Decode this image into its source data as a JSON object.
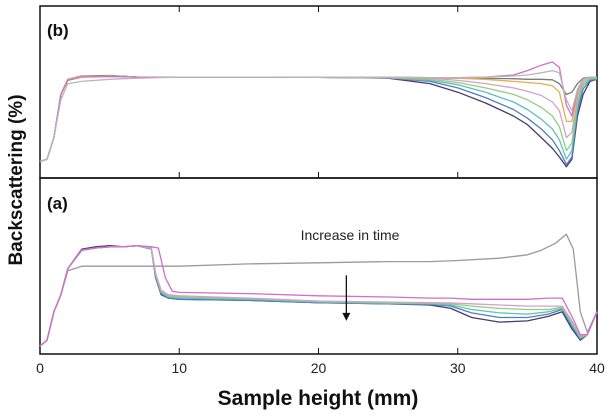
{
  "chart_data": {
    "type": "line",
    "xlabel": "Sample height (mm)",
    "ylabel": "Backscattering (%)",
    "xlim": [
      0,
      40
    ],
    "x_ticks": [
      "0",
      "10",
      "20",
      "30",
      "40"
    ],
    "grid": false,
    "panels": [
      {
        "label": "(b)",
        "position": "top",
        "series": [
          {
            "color": "#7a7a7a",
            "x": [
              0,
              0.5,
              1,
              1.5,
              2,
              3,
              5,
              7,
              10,
              15,
              20,
              25,
              28,
              30,
              32,
              34,
              35,
              36,
              36.8,
              37.3,
              37.8,
              38.2,
              38.6,
              39,
              39.5,
              40
            ],
            "y": [
              0.08,
              0.1,
              0.3,
              0.7,
              0.83,
              0.865,
              0.87,
              0.86,
              0.86,
              0.86,
              0.858,
              0.857,
              0.855,
              0.85,
              0.848,
              0.845,
              0.84,
              0.84,
              0.835,
              0.8,
              0.7,
              0.72,
              0.8,
              0.85,
              0.86,
              0.86
            ]
          },
          {
            "color": "#4a3a6a",
            "x": [
              0,
              0.5,
              1,
              1.5,
              2,
              3,
              5,
              7,
              10,
              15,
              20,
              25,
              28,
              30,
              32,
              34,
              35,
              36,
              36.8,
              37.3,
              37.8,
              38.2,
              38.6,
              39,
              39.5,
              40
            ],
            "y": [
              0.08,
              0.1,
              0.3,
              0.7,
              0.84,
              0.87,
              0.875,
              0.86,
              0.86,
              0.86,
              0.858,
              0.85,
              0.8,
              0.72,
              0.62,
              0.5,
              0.42,
              0.3,
              0.2,
              0.12,
              0.03,
              0.1,
              0.5,
              0.7,
              0.82,
              0.84
            ]
          },
          {
            "color": "#4f7fbf",
            "x": [
              0,
              0.5,
              1,
              1.5,
              2,
              3,
              5,
              7,
              10,
              15,
              20,
              25,
              28,
              30,
              32,
              34,
              35,
              36,
              36.8,
              37.3,
              37.8,
              38.2,
              38.6,
              39,
              39.5,
              40
            ],
            "y": [
              0.08,
              0.1,
              0.3,
              0.7,
              0.84,
              0.868,
              0.872,
              0.86,
              0.86,
              0.86,
              0.858,
              0.852,
              0.82,
              0.76,
              0.67,
              0.56,
              0.48,
              0.38,
              0.28,
              0.18,
              0.05,
              0.12,
              0.55,
              0.75,
              0.83,
              0.84
            ]
          },
          {
            "color": "#5fbfbf",
            "x": [
              0,
              0.5,
              1,
              1.5,
              2,
              3,
              5,
              7,
              10,
              15,
              20,
              25,
              28,
              30,
              32,
              34,
              35,
              36,
              36.8,
              37.3,
              37.8,
              38.2,
              38.6,
              39,
              39.5,
              40
            ],
            "y": [
              0.08,
              0.1,
              0.3,
              0.7,
              0.84,
              0.866,
              0.87,
              0.86,
              0.86,
              0.86,
              0.858,
              0.854,
              0.83,
              0.79,
              0.72,
              0.63,
              0.56,
              0.47,
              0.38,
              0.28,
              0.1,
              0.18,
              0.6,
              0.78,
              0.84,
              0.85
            ]
          },
          {
            "color": "#8fcf7f",
            "x": [
              0,
              0.5,
              1,
              1.5,
              2,
              3,
              5,
              7,
              10,
              15,
              20,
              25,
              28,
              30,
              32,
              34,
              35,
              36,
              36.8,
              37.3,
              37.8,
              38.2,
              38.6,
              39,
              39.5,
              40
            ],
            "y": [
              0.08,
              0.1,
              0.3,
              0.7,
              0.84,
              0.866,
              0.87,
              0.86,
              0.86,
              0.86,
              0.858,
              0.855,
              0.84,
              0.81,
              0.76,
              0.7,
              0.65,
              0.58,
              0.5,
              0.4,
              0.18,
              0.25,
              0.64,
              0.8,
              0.85,
              0.85
            ]
          },
          {
            "color": "#d4a0c8",
            "x": [
              0,
              0.5,
              1,
              1.5,
              2,
              3,
              5,
              7,
              10,
              15,
              20,
              25,
              28,
              30,
              32,
              34,
              35,
              36,
              36.8,
              37.3,
              37.8,
              38.2,
              38.6,
              39,
              39.5,
              40
            ],
            "y": [
              0.08,
              0.1,
              0.3,
              0.7,
              0.84,
              0.866,
              0.87,
              0.86,
              0.86,
              0.86,
              0.858,
              0.856,
              0.85,
              0.83,
              0.8,
              0.76,
              0.73,
              0.69,
              0.63,
              0.55,
              0.3,
              0.35,
              0.68,
              0.82,
              0.86,
              0.86
            ]
          },
          {
            "color": "#e0b050",
            "x": [
              0,
              0.5,
              1,
              1.5,
              2,
              3,
              5,
              7,
              10,
              15,
              20,
              25,
              28,
              30,
              32,
              34,
              35,
              36,
              36.8,
              37.3,
              37.8,
              38.2,
              38.6,
              39,
              39.5,
              40
            ],
            "y": [
              0.08,
              0.1,
              0.3,
              0.7,
              0.84,
              0.866,
              0.87,
              0.86,
              0.86,
              0.86,
              0.858,
              0.857,
              0.855,
              0.85,
              0.84,
              0.82,
              0.81,
              0.8,
              0.78,
              0.72,
              0.45,
              0.45,
              0.72,
              0.84,
              0.86,
              0.86
            ]
          },
          {
            "color": "#d070c8",
            "x": [
              0,
              0.5,
              1,
              1.5,
              2,
              3,
              5,
              7,
              10,
              15,
              20,
              25,
              28,
              30,
              32,
              34,
              35,
              36,
              36.8,
              37.3,
              37.8,
              38.2,
              38.6,
              39,
              39.5,
              40
            ],
            "y": [
              0.08,
              0.1,
              0.3,
              0.7,
              0.83,
              0.86,
              0.865,
              0.86,
              0.86,
              0.86,
              0.858,
              0.857,
              0.856,
              0.855,
              0.86,
              0.88,
              0.92,
              0.97,
              1.0,
              0.95,
              0.6,
              0.5,
              0.74,
              0.84,
              0.86,
              0.86
            ]
          },
          {
            "color": "#b8b8b8",
            "x": [
              0,
              0.5,
              1,
              1.5,
              2,
              3,
              5,
              7,
              10,
              15,
              20,
              25,
              28,
              30,
              32,
              34,
              35,
              36,
              36.8,
              37.3,
              37.8,
              38.2,
              38.6,
              39,
              39.5,
              40
            ],
            "y": [
              0.08,
              0.1,
              0.3,
              0.65,
              0.8,
              0.82,
              0.84,
              0.85,
              0.86,
              0.86,
              0.858,
              0.857,
              0.856,
              0.855,
              0.86,
              0.87,
              0.88,
              0.9,
              0.92,
              0.9,
              0.65,
              0.55,
              0.75,
              0.84,
              0.86,
              0.86
            ]
          }
        ]
      },
      {
        "label": "(a)",
        "position": "bottom",
        "annotation": {
          "text": "Increase in time",
          "x": 22,
          "y_from": 0.62,
          "y_to": 0.22
        },
        "series": [
          {
            "color": "#9a9a9a",
            "x": [
              0,
              0.5,
              1,
              1.5,
              2,
              3,
              5,
              7,
              10,
              15,
              20,
              25,
              28,
              30,
              33,
              35,
              36,
              37,
              37.8,
              38.3,
              38.8,
              39.3,
              40
            ],
            "y": [
              0.0,
              0.05,
              0.3,
              0.45,
              0.66,
              0.7,
              0.7,
              0.7,
              0.7,
              0.72,
              0.73,
              0.74,
              0.74,
              0.75,
              0.77,
              0.8,
              0.84,
              0.9,
              0.98,
              0.85,
              0.3,
              0.12,
              0.3
            ]
          },
          {
            "color": "#4a3a6a",
            "x": [
              0,
              0.5,
              1,
              1.5,
              2,
              3,
              4,
              5,
              6,
              7,
              8,
              8.3,
              8.7,
              9.2,
              10,
              15,
              20,
              25,
              28,
              29.5,
              31,
              33,
              35,
              36.5,
              37.5,
              38.2,
              38.8,
              39.3,
              40
            ],
            "y": [
              0.0,
              0.05,
              0.3,
              0.45,
              0.68,
              0.85,
              0.87,
              0.88,
              0.87,
              0.88,
              0.85,
              0.6,
              0.45,
              0.42,
              0.41,
              0.4,
              0.38,
              0.37,
              0.36,
              0.33,
              0.25,
              0.21,
              0.22,
              0.26,
              0.3,
              0.15,
              0.05,
              0.1,
              0.3
            ]
          },
          {
            "color": "#4f7fbf",
            "x": [
              0,
              0.5,
              1,
              1.5,
              2,
              3,
              4,
              5,
              6,
              7,
              8,
              8.3,
              8.7,
              9.2,
              10,
              15,
              20,
              25,
              28,
              29.5,
              31,
              33,
              35,
              36.5,
              37.5,
              38.2,
              38.8,
              39.3,
              40
            ],
            "y": [
              0.0,
              0.05,
              0.3,
              0.45,
              0.68,
              0.84,
              0.86,
              0.87,
              0.87,
              0.88,
              0.85,
              0.6,
              0.46,
              0.42,
              0.41,
              0.4,
              0.38,
              0.37,
              0.365,
              0.35,
              0.29,
              0.25,
              0.25,
              0.28,
              0.32,
              0.17,
              0.06,
              0.1,
              0.3
            ]
          },
          {
            "color": "#5fbfbf",
            "x": [
              0,
              0.5,
              1,
              1.5,
              2,
              3,
              4,
              5,
              6,
              7,
              8,
              8.3,
              8.7,
              9.2,
              10,
              15,
              20,
              25,
              28,
              29.5,
              31,
              33,
              35,
              36.5,
              37.5,
              38.2,
              38.8,
              39.3,
              40
            ],
            "y": [
              0.0,
              0.05,
              0.3,
              0.45,
              0.68,
              0.84,
              0.86,
              0.87,
              0.87,
              0.88,
              0.85,
              0.62,
              0.47,
              0.43,
              0.42,
              0.41,
              0.385,
              0.375,
              0.37,
              0.36,
              0.32,
              0.29,
              0.28,
              0.3,
              0.33,
              0.19,
              0.07,
              0.1,
              0.3
            ]
          },
          {
            "color": "#8fcf7f",
            "x": [
              0,
              0.5,
              1,
              1.5,
              2,
              3,
              4,
              5,
              6,
              7,
              8,
              8.3,
              8.7,
              9.2,
              10,
              15,
              20,
              25,
              28,
              29.5,
              31,
              33,
              35,
              36.5,
              37.5,
              38.2,
              38.8,
              39.3,
              40
            ],
            "y": [
              0.0,
              0.05,
              0.3,
              0.45,
              0.68,
              0.84,
              0.86,
              0.87,
              0.87,
              0.88,
              0.86,
              0.63,
              0.48,
              0.44,
              0.43,
              0.415,
              0.39,
              0.38,
              0.375,
              0.37,
              0.35,
              0.33,
              0.32,
              0.32,
              0.34,
              0.2,
              0.08,
              0.1,
              0.3
            ]
          },
          {
            "color": "#d4a0c8",
            "x": [
              0,
              0.5,
              1,
              1.5,
              2,
              3,
              4,
              5,
              6,
              7,
              8,
              8.3,
              8.7,
              9.2,
              10,
              15,
              20,
              25,
              28,
              29.5,
              31,
              33,
              35,
              36.5,
              37.5,
              38.2,
              38.8,
              39.3,
              40
            ],
            "y": [
              0.0,
              0.05,
              0.3,
              0.45,
              0.68,
              0.84,
              0.86,
              0.87,
              0.87,
              0.88,
              0.86,
              0.64,
              0.49,
              0.45,
              0.44,
              0.42,
              0.395,
              0.385,
              0.38,
              0.378,
              0.37,
              0.36,
              0.35,
              0.35,
              0.35,
              0.22,
              0.09,
              0.1,
              0.3
            ]
          },
          {
            "color": "#d070c8",
            "x": [
              0,
              0.5,
              1,
              1.5,
              2,
              3,
              4,
              5,
              6,
              7,
              8,
              8.5,
              9,
              9.5,
              10,
              15,
              20,
              25,
              28,
              29.5,
              31,
              33,
              35,
              36.5,
              37.5,
              38.2,
              38.8,
              39.3,
              40
            ],
            "y": [
              0.0,
              0.05,
              0.3,
              0.45,
              0.68,
              0.84,
              0.86,
              0.87,
              0.87,
              0.88,
              0.87,
              0.86,
              0.6,
              0.48,
              0.47,
              0.46,
              0.44,
              0.43,
              0.42,
              0.42,
              0.41,
              0.41,
              0.41,
              0.42,
              0.42,
              0.26,
              0.1,
              0.1,
              0.3
            ]
          }
        ]
      }
    ]
  }
}
